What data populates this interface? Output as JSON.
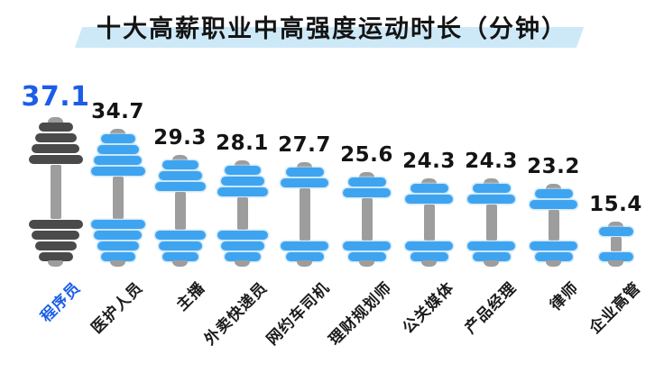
{
  "title": "十大高薪职业中高强度运动时长（分钟）",
  "colors": {
    "blue": "#3fa4f0",
    "dark": "#4a4a4a",
    "shaft": "#9d9d9d",
    "hlblue": "#1b5de8",
    "band": "#cde9f8",
    "text": "#141414"
  },
  "chart_data": {
    "type": "bar",
    "title": "十大高薪职业中高强度运动时长（分钟）",
    "unit": "分钟",
    "categories": [
      "程序员",
      "医护人员",
      "主播",
      "外卖快递员",
      "网约车司机",
      "理财规划师",
      "公关媒体",
      "产品经理",
      "律师",
      "企业高管"
    ],
    "values": [
      37.1,
      34.7,
      29.3,
      28.1,
      27.7,
      25.6,
      24.3,
      24.3,
      23.2,
      15.4
    ],
    "plate_counts": [
      4,
      4,
      3,
      3,
      2,
      2,
      2,
      2,
      2,
      1
    ],
    "highlight_index": 0,
    "legend": "none",
    "grid": "off",
    "value_labels": "above each dumbbell",
    "bar_glyph": "dumbbell-icon"
  }
}
